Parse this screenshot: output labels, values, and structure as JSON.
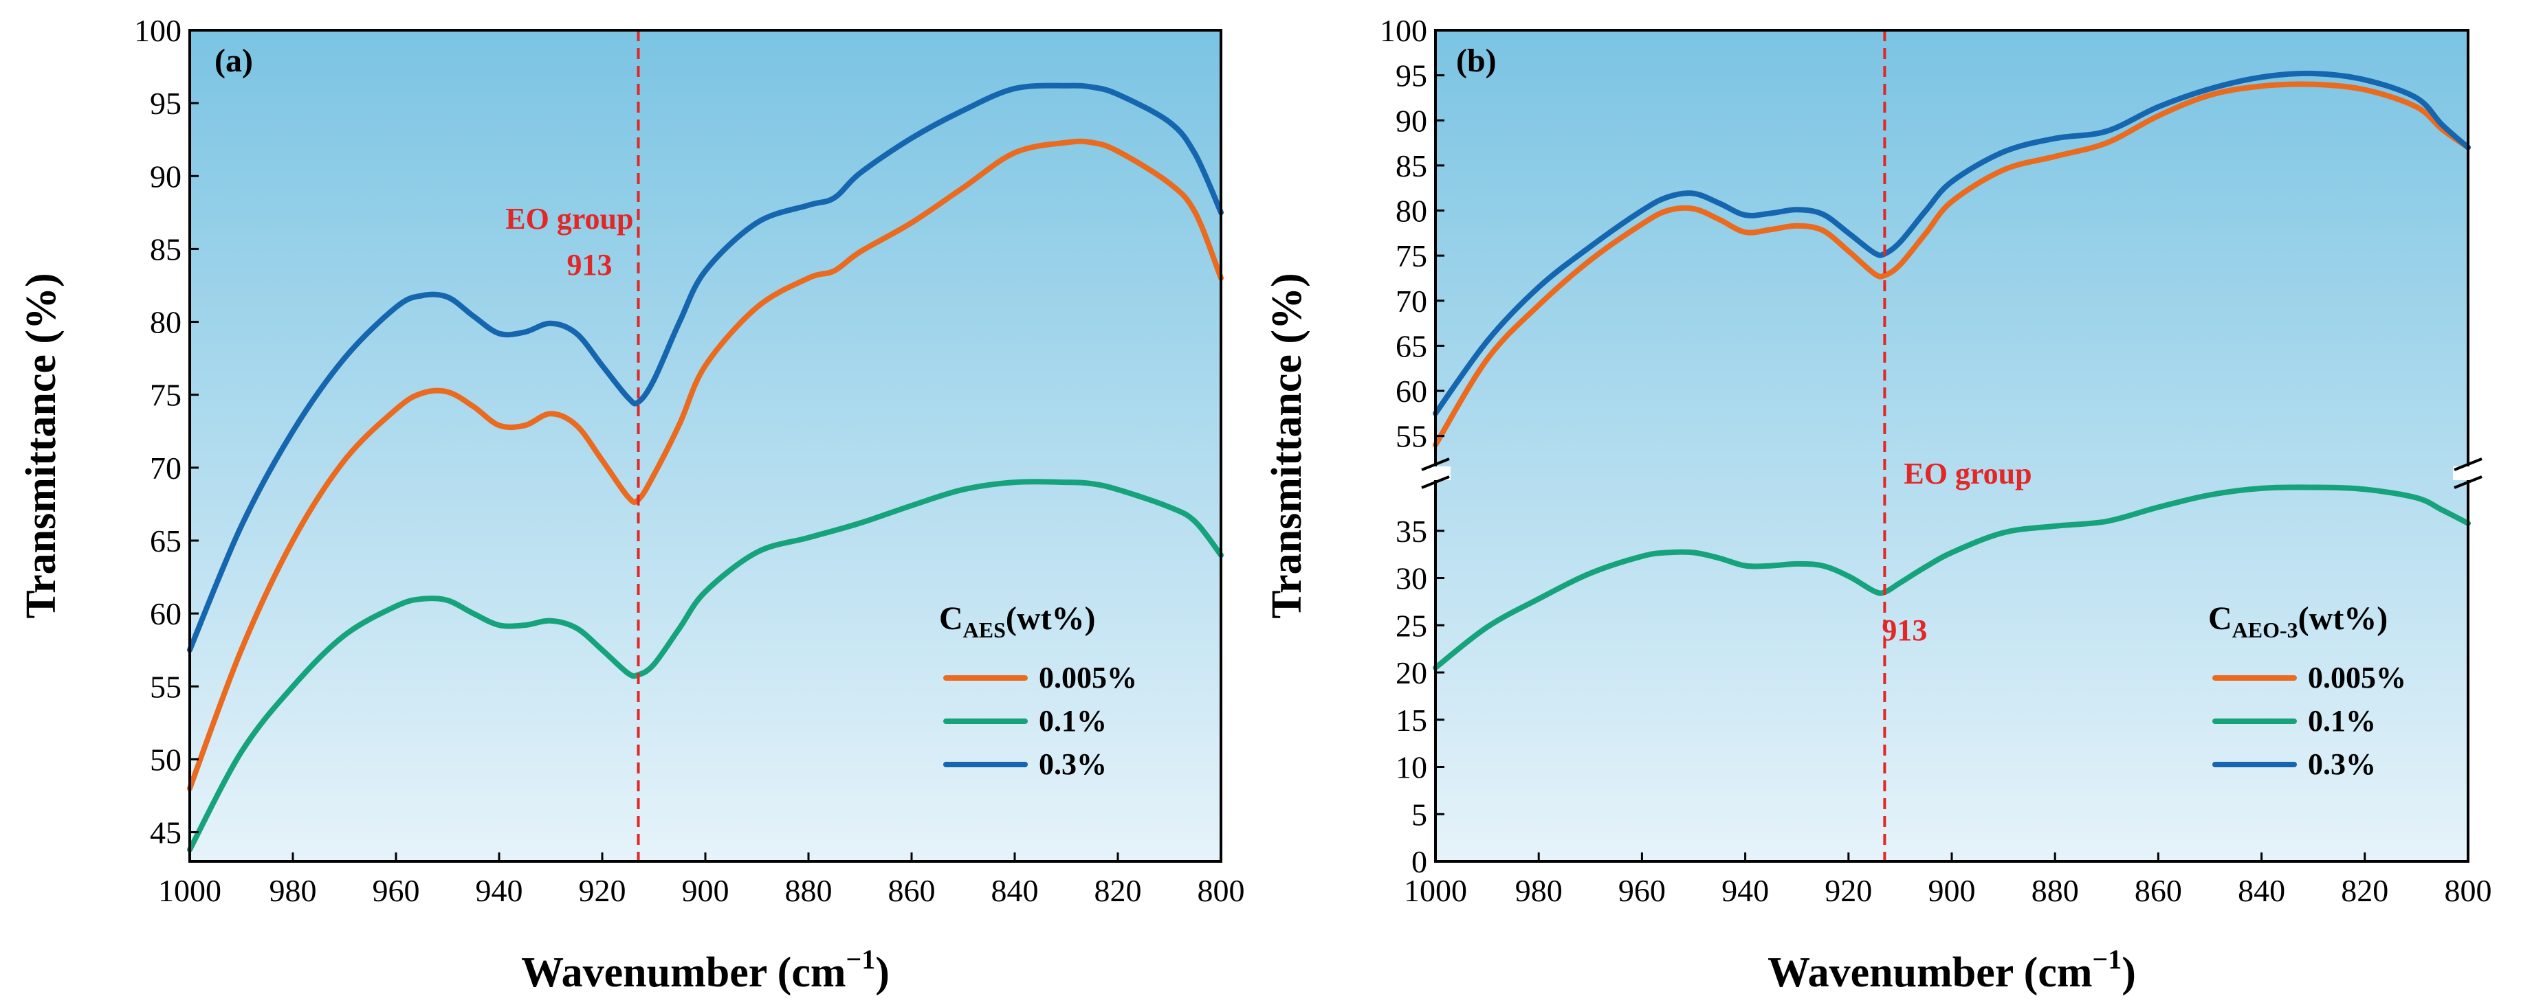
{
  "chart_data": [
    {
      "type": "line",
      "panel_label": "(a)",
      "xlabel": "Wavenumber (cm",
      "xlabel_sup": "−1",
      "xlabel_close": ")",
      "ylabel": "Transmittance (%)",
      "xlim": [
        1000,
        800
      ],
      "ylim": [
        43,
        100
      ],
      "xticks": [
        1000,
        980,
        960,
        940,
        920,
        900,
        880,
        860,
        840,
        820,
        800
      ],
      "yticks": [
        45,
        50,
        55,
        60,
        65,
        70,
        75,
        80,
        85,
        90,
        95,
        100
      ],
      "vline_x": 913,
      "annotation_line1": "EO group",
      "annotation_line2": "913",
      "legend": {
        "title_main": "C",
        "title_sub": "AES",
        "title_rest": "(wt%)"
      },
      "series": [
        {
          "name": "0.005%",
          "color": "#ea6b1f",
          "x": [
            1000,
            990,
            980,
            970,
            960,
            955,
            950,
            945,
            940,
            935,
            930,
            925,
            920,
            915,
            913,
            910,
            905,
            900,
            890,
            880,
            875,
            870,
            860,
            850,
            840,
            830,
            825,
            820,
            810,
            805,
            800
          ],
          "y": [
            48,
            57.5,
            65,
            70.5,
            74,
            75.1,
            75.2,
            74.2,
            72.9,
            72.9,
            73.7,
            72.9,
            70.5,
            68,
            67.8,
            69.5,
            73,
            77,
            81,
            83,
            83.5,
            84.8,
            86.8,
            89.2,
            91.6,
            92.3,
            92.3,
            91.7,
            89.5,
            87.5,
            83
          ]
        },
        {
          "name": "0.1%",
          "color": "#16a37c",
          "x": [
            1000,
            990,
            980,
            970,
            960,
            955,
            950,
            945,
            940,
            935,
            930,
            925,
            920,
            915,
            913,
            910,
            905,
            900,
            890,
            880,
            870,
            860,
            850,
            840,
            830,
            825,
            820,
            810,
            805,
            800
          ],
          "y": [
            43.8,
            50.5,
            55,
            58.5,
            60.5,
            61,
            60.9,
            60,
            59.2,
            59.2,
            59.5,
            59,
            57.5,
            55.9,
            55.8,
            56.5,
            59,
            61.5,
            64.2,
            65.2,
            66.2,
            67.4,
            68.5,
            69,
            69,
            68.9,
            68.5,
            67.3,
            66.3,
            64
          ]
        },
        {
          "name": "0.3%",
          "color": "#1566ae",
          "x": [
            1000,
            990,
            980,
            970,
            960,
            955,
            950,
            945,
            940,
            935,
            930,
            925,
            920,
            915,
            913,
            910,
            905,
            900,
            890,
            880,
            875,
            870,
            860,
            850,
            840,
            830,
            825,
            820,
            810,
            805,
            800
          ],
          "y": [
            57.5,
            66,
            72.5,
            77.5,
            81,
            81.8,
            81.7,
            80.4,
            79.2,
            79.3,
            79.9,
            79.2,
            77,
            74.8,
            74.5,
            76,
            80,
            83.5,
            86.8,
            88,
            88.5,
            90.2,
            92.6,
            94.5,
            96,
            96.2,
            96.1,
            95.6,
            93.7,
            91.5,
            87.5
          ]
        }
      ]
    },
    {
      "type": "line",
      "panel_label": "(b)",
      "xlabel": "Wavenumber (cm",
      "xlabel_sup": "−1",
      "xlabel_close": ")",
      "ylabel": "Transmittance (%)",
      "xlim": [
        1000,
        800
      ],
      "broken_y_axis": true,
      "ylim_upper": [
        52,
        100
      ],
      "ylim_lower": [
        0,
        40
      ],
      "yticks_upper": [
        55,
        60,
        65,
        70,
        75,
        80,
        85,
        90,
        95,
        100
      ],
      "yticks_lower": [
        0,
        5,
        10,
        15,
        20,
        25,
        30,
        35
      ],
      "xticks": [
        1000,
        980,
        960,
        940,
        920,
        900,
        880,
        860,
        840,
        820,
        800
      ],
      "vline_x": 913,
      "annotation_line1": "EO group",
      "annotation_line2": "913",
      "legend": {
        "title_main": "C",
        "title_sub": "AEO-3",
        "title_rest": "(wt%)"
      },
      "series": [
        {
          "name": "0.005%",
          "color": "#ea6b1f",
          "x": [
            1000,
            990,
            980,
            970,
            960,
            955,
            950,
            945,
            940,
            935,
            930,
            925,
            920,
            915,
            913,
            910,
            905,
            900,
            890,
            880,
            870,
            860,
            850,
            840,
            830,
            820,
            810,
            805,
            800
          ],
          "y": [
            54,
            63.5,
            69.5,
            74.5,
            78.5,
            80,
            80.2,
            79,
            77.6,
            77.9,
            78.3,
            77.8,
            75.5,
            73,
            72.8,
            74,
            77.5,
            81,
            84.5,
            86,
            87.5,
            90.5,
            92.8,
            93.8,
            94,
            93.4,
            91.5,
            89,
            87
          ]
        },
        {
          "name": "0.1%",
          "color": "#16a37c",
          "x": [
            1000,
            990,
            980,
            970,
            960,
            955,
            950,
            945,
            940,
            935,
            930,
            925,
            920,
            915,
            913,
            910,
            905,
            900,
            890,
            880,
            870,
            860,
            850,
            840,
            830,
            820,
            810,
            805,
            800
          ],
          "y": [
            20.5,
            24.8,
            27.8,
            30.5,
            32.3,
            32.7,
            32.7,
            32.1,
            31.3,
            31.3,
            31.5,
            31.3,
            30.2,
            28.6,
            28.5,
            29.5,
            31.2,
            32.7,
            34.8,
            35.5,
            36,
            37.5,
            38.8,
            39.5,
            39.6,
            39.4,
            38.5,
            37.2,
            35.8
          ]
        },
        {
          "name": "0.3%",
          "color": "#1566ae",
          "x": [
            1000,
            990,
            980,
            970,
            960,
            955,
            950,
            945,
            940,
            935,
            930,
            925,
            920,
            915,
            913,
            910,
            905,
            900,
            890,
            880,
            870,
            860,
            850,
            840,
            830,
            820,
            810,
            805,
            800
          ],
          "y": [
            57.5,
            65.5,
            71.5,
            76,
            80,
            81.5,
            81.9,
            80.8,
            79.5,
            79.7,
            80.1,
            79.6,
            77.5,
            75.3,
            75.2,
            76.5,
            80,
            83.2,
            86.5,
            88,
            88.8,
            91.5,
            93.5,
            94.8,
            95.2,
            94.5,
            92.5,
            89.5,
            87
          ]
        }
      ]
    }
  ]
}
